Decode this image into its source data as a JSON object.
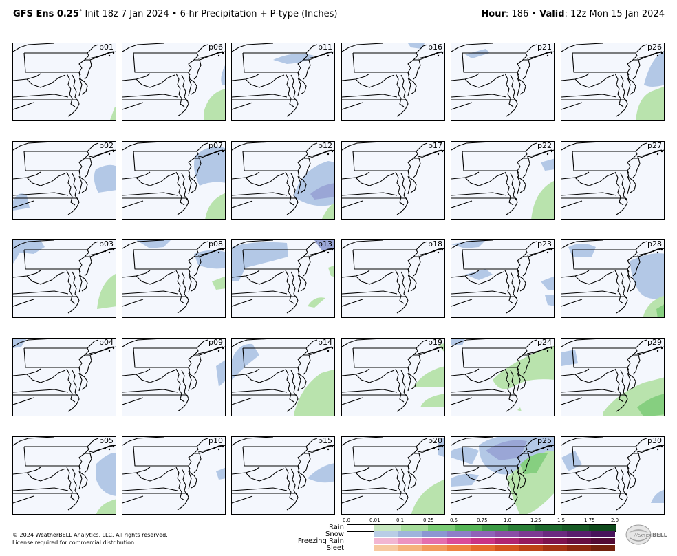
{
  "header": {
    "model": "GFS Ens 0.25",
    "degree": "°",
    "init": " Init 18z 7 Jan 2024",
    "sep": " • ",
    "product": "6-hr Precipitation + P-type (Inches)",
    "hour_label": "Hour",
    "hour_value": ": 186",
    "valid_label": "Valid",
    "valid_value": ": 12z Mon 15 Jan 2024"
  },
  "panels": [
    [
      "p01",
      "p06",
      "p11",
      "p16",
      "p21",
      "p26"
    ],
    [
      "p02",
      "p07",
      "p12",
      "p17",
      "p22",
      "p27"
    ],
    [
      "p03",
      "p08",
      "p13",
      "p18",
      "p23",
      "p28"
    ],
    [
      "p04",
      "p09",
      "p14",
      "p19",
      "p24",
      "p29"
    ],
    [
      "p05",
      "p10",
      "p15",
      "p20",
      "p25",
      "p30"
    ]
  ],
  "legend": {
    "ticks": [
      "0.0",
      "0.01",
      "0.1",
      "0.25",
      "0.5",
      "0.75",
      "1.0",
      "1.25",
      "1.5",
      "1.75",
      "2.0"
    ],
    "rows": [
      "Rain",
      "Snow",
      "Freezing Rain",
      "Sleet"
    ],
    "colors": {
      "rain": [
        "#ffffff",
        "#c8e8c0",
        "#a6dc9a",
        "#7acb74",
        "#56b556",
        "#3c9a44",
        "#2a7f36",
        "#1e6a2d",
        "#175a25",
        "#0f4a1c"
      ],
      "snow": [
        "#b9cde6",
        "#9fb4dc",
        "#8c96d2",
        "#8e7ec8",
        "#8f63b8",
        "#8a4ea6",
        "#7d3a92",
        "#6b2a80",
        "#5a1d6d",
        "#48135b"
      ],
      "frzrain": [
        "#f2b6d2",
        "#ec93c0",
        "#e46ead",
        "#da4b99",
        "#c93384",
        "#b02470",
        "#951a5e",
        "#7d134e",
        "#670e41",
        "#520a34"
      ],
      "sleet": [
        "#f7c9a0",
        "#f5b27c",
        "#f29a5c",
        "#ee8240",
        "#e56a2b",
        "#d4541d",
        "#bd4216",
        "#a53312",
        "#8c270e",
        "#72200c"
      ]
    }
  },
  "footer": {
    "copyright": "© 2024 WeatherBELL Analytics, LLC. All rights reserved.",
    "license": "License required for commercial distribution.",
    "logo_text": "WeatherBELL"
  },
  "colors": {
    "background_ocean": "#f4f7fd",
    "snow_light": "#b3c8e6",
    "snow_med": "#9aa6d6",
    "rain_light": "#b9e3ad",
    "rain_med": "#86cf80"
  }
}
